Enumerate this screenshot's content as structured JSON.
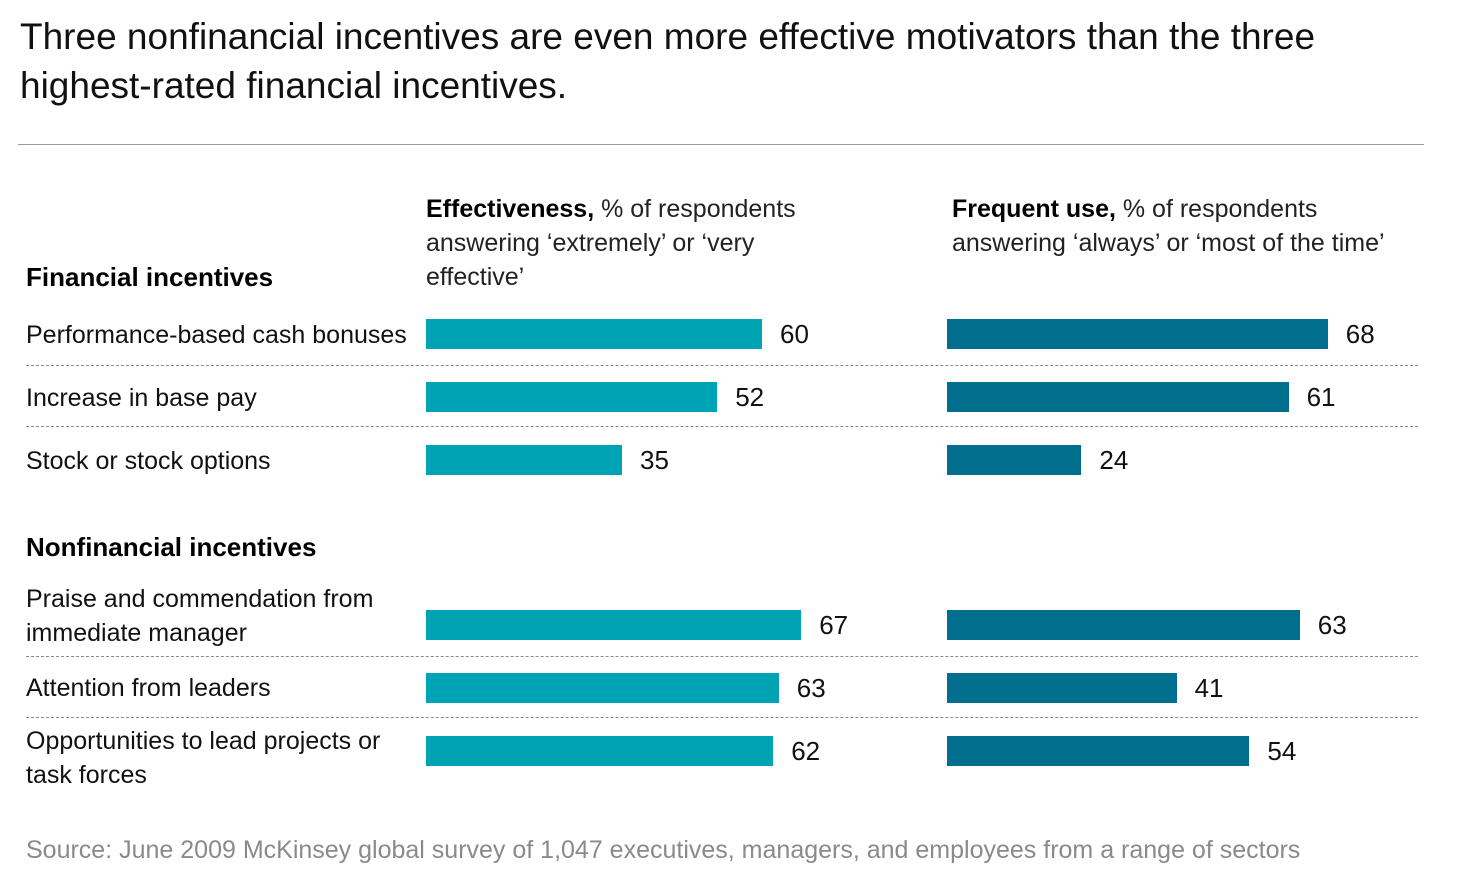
{
  "title": "Three nonfinancial incentives are even more effective motivators than the three highest-rated financial incentives.",
  "columns": {
    "effectiveness": {
      "bold": "Effectiveness,",
      "rest": " % of respondents answering ‘extremely’ or ‘very effective’"
    },
    "frequent_use": {
      "bold": "Frequent use,",
      "rest": " % of respondents answering ‘always’ or ‘most of the time’"
    }
  },
  "groups": {
    "financial": "Financial incentives",
    "nonfinancial": "Nonfinancial incentives"
  },
  "source": "Source: June 2009 McKinsey global survey of 1,047 executives, managers, and employees from a range of sectors",
  "colors": {
    "effectiveness": "#00A3B4",
    "frequent_use": "#006E8C"
  },
  "chart_data": {
    "type": "bar",
    "orientation": "horizontal",
    "title": "Three nonfinancial incentives are even more effective motivators than the three highest-rated financial incentives.",
    "unit": "% of respondents",
    "categories": [
      "Performance-based cash bonuses",
      "Increase in base pay",
      "Stock or stock options",
      "Praise and commendation from immediate manager",
      "Attention from leaders",
      "Opportunities to lead projects or task forces"
    ],
    "category_groups": [
      "Financial incentives",
      "Financial incentives",
      "Financial incentives",
      "Nonfinancial incentives",
      "Nonfinancial incentives",
      "Nonfinancial incentives"
    ],
    "series": [
      {
        "name": "Effectiveness",
        "values": [
          60,
          52,
          35,
          67,
          63,
          62
        ]
      },
      {
        "name": "Frequent use",
        "values": [
          68,
          61,
          24,
          63,
          41,
          54
        ]
      }
    ],
    "xlim": [
      0,
      100
    ]
  }
}
